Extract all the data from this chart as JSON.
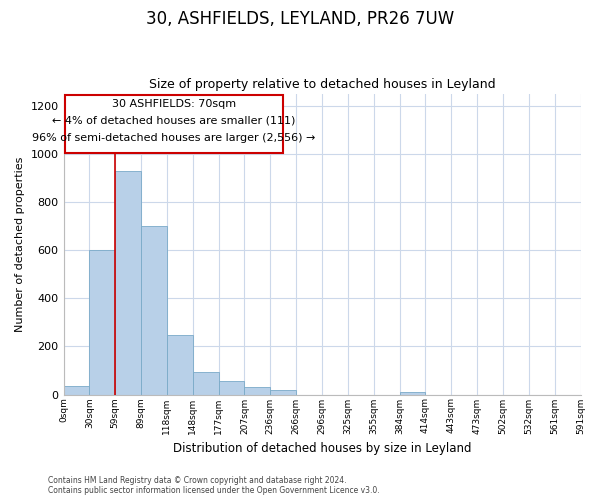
{
  "title": "30, ASHFIELDS, LEYLAND, PR26 7UW",
  "subtitle": "Size of property relative to detached houses in Leyland",
  "xlabel": "Distribution of detached houses by size in Leyland",
  "ylabel": "Number of detached properties",
  "bar_color": "#b8d0e8",
  "bar_edge_color": "#7aaac8",
  "annotation_box_color": "#ffffff",
  "annotation_box_edge": "#cc0000",
  "red_line_color": "#cc0000",
  "grid_color": "#ccd8ea",
  "background_color": "#ffffff",
  "property_line_bin": 2,
  "annotation_line1": "30 ASHFIELDS: 70sqm",
  "annotation_line2": "← 4% of detached houses are smaller (111)",
  "annotation_line3": "96% of semi-detached houses are larger (2,556) →",
  "footer_line1": "Contains HM Land Registry data © Crown copyright and database right 2024.",
  "footer_line2": "Contains public sector information licensed under the Open Government Licence v3.0.",
  "bin_labels": [
    "0sqm",
    "30sqm",
    "59sqm",
    "89sqm",
    "118sqm",
    "148sqm",
    "177sqm",
    "207sqm",
    "236sqm",
    "266sqm",
    "296sqm",
    "325sqm",
    "355sqm",
    "384sqm",
    "414sqm",
    "443sqm",
    "473sqm",
    "502sqm",
    "532sqm",
    "561sqm",
    "591sqm"
  ],
  "bar_heights": [
    35,
    600,
    930,
    700,
    248,
    95,
    55,
    30,
    18,
    0,
    0,
    0,
    0,
    10,
    0,
    0,
    0,
    0,
    0,
    0
  ],
  "ylim": [
    0,
    1250
  ],
  "yticks": [
    0,
    200,
    400,
    600,
    800,
    1000,
    1200
  ]
}
